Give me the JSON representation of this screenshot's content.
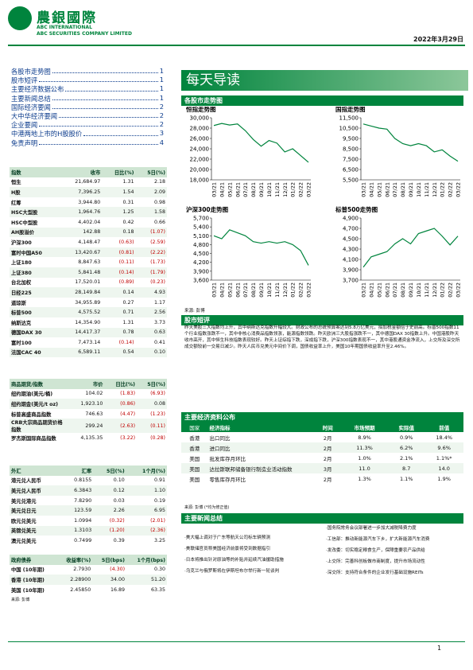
{
  "header": {
    "brand": "農銀國際",
    "en1": "ABC INTERNATIONAL",
    "en2": "ABC SECURITIES COMPANY LIMITED",
    "date": "2022年3月29日"
  },
  "toc": [
    {
      "title": "各股市走势图",
      "page": "1"
    },
    {
      "title": "股市短评",
      "page": "1"
    },
    {
      "title": "主要经济数据公布",
      "page": "1"
    },
    {
      "title": "主要新闻总结",
      "page": "1"
    },
    {
      "title": "国际经济要闻",
      "page": "2"
    },
    {
      "title": "大中华经济要闻",
      "page": "2"
    },
    {
      "title": "企业要闻",
      "page": "2"
    },
    {
      "title": "中港两地上市的H股股价",
      "page": "3"
    },
    {
      "title": "免责声明",
      "page": "4"
    }
  ],
  "banner": "每天导读",
  "market_section": {
    "title": "各股市走势图",
    "source": "来源: 彭博",
    "charts": [
      {
        "title": "恒指走势图",
        "xlabels": [
          "03/21",
          "04/21",
          "05/21",
          "06/21",
          "07/21",
          "08/21",
          "09/21",
          "10/21",
          "11/21",
          "12/21",
          "01/22",
          "02/22",
          "03/22"
        ],
        "values": [
          28500,
          28900,
          28600,
          28800,
          27500,
          25800,
          24500,
          25600,
          25100,
          23400,
          24000,
          22700,
          21400
        ],
        "ylim": [
          18000,
          30000
        ],
        "yticks": [
          {
            "value": 18000,
            "label": "18,000"
          },
          {
            "value": 20000,
            "label": "20,000"
          },
          {
            "value": 22000,
            "label": "22,000"
          },
          {
            "value": 24000,
            "label": "24,000"
          },
          {
            "value": 26000,
            "label": "26,000"
          },
          {
            "value": 28000,
            "label": "28,000"
          },
          {
            "value": 30000,
            "label": "30,000"
          }
        ],
        "color": "#00843d"
      },
      {
        "title": "国指走势图",
        "xlabels": [
          "03/21",
          "04/21",
          "05/21",
          "06/21",
          "07/21",
          "08/21",
          "09/21",
          "10/21",
          "11/21",
          "12/21",
          "01/22",
          "02/22",
          "03/22"
        ],
        "values": [
          10900,
          10700,
          10500,
          10400,
          9500,
          9000,
          8800,
          9000,
          8800,
          8200,
          8400,
          7800,
          7300
        ],
        "ylim": [
          5500,
          11500
        ],
        "yticks": [
          {
            "value": 5500,
            "label": "5,500"
          },
          {
            "value": 6500,
            "label": "6,500"
          },
          {
            "value": 7500,
            "label": "7,500"
          },
          {
            "value": 8500,
            "label": "8,500"
          },
          {
            "value": 9500,
            "label": "9,500"
          },
          {
            "value": 10500,
            "label": "10,500"
          },
          {
            "value": 11500,
            "label": "11,500"
          }
        ],
        "color": "#00843d"
      },
      {
        "title": "沪深300走势图",
        "xlabels": [
          "03/21",
          "04/21",
          "05/21",
          "06/21",
          "07/21",
          "08/21",
          "09/21",
          "10/21",
          "11/21",
          "12/21",
          "01/22",
          "02/22",
          "03/22"
        ],
        "values": [
          5100,
          5000,
          5300,
          5200,
          5100,
          4900,
          4850,
          4900,
          4850,
          4900,
          4800,
          4600,
          4100
        ],
        "ylim": [
          3600,
          5700
        ],
        "yticks": [
          {
            "value": 3600,
            "label": "3,600"
          },
          {
            "value": 3900,
            "label": "3,900"
          },
          {
            "value": 4200,
            "label": "4,200"
          },
          {
            "value": 4500,
            "label": "4,500"
          },
          {
            "value": 4800,
            "label": "4,800"
          },
          {
            "value": 5100,
            "label": "5,100"
          },
          {
            "value": 5400,
            "label": "5,400"
          },
          {
            "value": 5700,
            "label": "5,700"
          }
        ],
        "color": "#00843d"
      },
      {
        "title": "标普500走势图",
        "xlabels": [
          "03/21",
          "04/21",
          "05/21",
          "06/21",
          "07/21",
          "08/21",
          "09/21",
          "10/21",
          "11/21",
          "12/21",
          "01/22",
          "02/22",
          "03/22"
        ],
        "values": [
          3950,
          4150,
          4200,
          4250,
          4400,
          4500,
          4400,
          4600,
          4650,
          4700,
          4550,
          4380,
          4550
        ],
        "ylim": [
          3700,
          4900
        ],
        "yticks": [
          {
            "value": 3700,
            "label": "3,700"
          },
          {
            "value": 3900,
            "label": "3,900"
          },
          {
            "value": 4100,
            "label": "4,100"
          },
          {
            "value": 4300,
            "label": "4,300"
          },
          {
            "value": 4500,
            "label": "4,500"
          },
          {
            "value": 4700,
            "label": "4,700"
          },
          {
            "value": 4900,
            "label": "4,900"
          }
        ],
        "color": "#00843d"
      }
    ]
  },
  "commentary": {
    "title": "股市短评",
    "text": "昨天美股三大指数均上升，其中纳斯达克指数升幅较大。财政公布的总统预算案达到5.8万亿美元，拟加税金额倍于史前高。标普500指数11个行业指数涨跌不一，其中非核心消费品指数领涨，能源指数领跌。昨天欧洲三大股指涨跌不一，其中德国DAX 30指数上升。中国港股昨天收市高开，其中恒生科技指数表现较好。昨天上证综指下跌，深成指下跌，沪深300指数表现不一，其中港股通资金净流入，上交所及深交所成交额较前一交易日减少。昨天人民币兑美元中间价下调，国债收益率上升，美国10年期国债收益率升至2.46%。"
  },
  "index_table": {
    "header": [
      "指数",
      "收市",
      "日比(%)",
      "5日(%)"
    ],
    "rows": [
      [
        "恒生",
        "21,684.97",
        "1.31",
        "2.18"
      ],
      [
        "H股",
        "7,396.25",
        "1.54",
        "2.09"
      ],
      [
        "红筹",
        "3,944.80",
        "0.31",
        "0.98"
      ],
      [
        "HSC大型股",
        "1,964.76",
        "1.25",
        "1.58"
      ],
      [
        "HSC中型股",
        "4,402.04",
        "0.42",
        "0.66"
      ],
      [
        "AH股溢价",
        "142.88",
        "0.18",
        "(1.07)"
      ],
      [
        "沪深300",
        "4,148.47",
        "(0.63)",
        "(2.59)"
      ],
      [
        "富时中国A50",
        "13,420.67",
        "(0.81)",
        "(2.22)"
      ],
      [
        "上证180",
        "8,847.63",
        "(0.11)",
        "(1.73)"
      ],
      [
        "上证380",
        "5,841.48",
        "(0.14)",
        "(1.79)"
      ],
      [
        "台北加权",
        "17,520.01",
        "(0.89)",
        "(0.23)"
      ],
      [
        "日经225",
        "28,149.84",
        "0.14",
        "4.93"
      ],
      [
        "道琼斯",
        "34,955.89",
        "0.27",
        "1.17"
      ],
      [
        "标普500",
        "4,575.52",
        "0.71",
        "2.56"
      ],
      [
        "纳斯达克",
        "14,354.90",
        "1.31",
        "3.73"
      ],
      [
        "德国DAX 30",
        "14,417.37",
        "0.78",
        "0.63"
      ],
      [
        "富时100",
        "7,473.14",
        "(0.14)",
        "0.41"
      ],
      [
        "法国CAC 40",
        "6,589.11",
        "0.54",
        "0.10"
      ]
    ]
  },
  "commodity_table": {
    "header": [
      "商品期货/指数",
      "市价",
      "日比(%)",
      "5日(%)"
    ],
    "rows": [
      [
        "纽约期油(美元/桶)",
        "104.02",
        "(1.83)",
        "(6.93)"
      ],
      [
        "纽约期金(美元/t oz)",
        "1,923.10",
        "(0.86)",
        "0.08"
      ],
      [
        "标普高盛商品指数",
        "746.63",
        "(4.47)",
        "(1.23)"
      ],
      [
        "CRB大宗商品期货价格指数",
        "299.24",
        "(2.63)",
        "(0.11)"
      ],
      [
        "罗杰斯国际商品指数",
        "4,135.35",
        "(3.22)",
        "(0.28)"
      ]
    ]
  },
  "fx_table": {
    "header": [
      "外汇",
      "汇率",
      "5日(%)",
      "1个月(%)"
    ],
    "rows": [
      [
        "港元兑人民币",
        "0.8155",
        "0.10",
        "0.91"
      ],
      [
        "美元兑人民币",
        "6.3843",
        "0.12",
        "1.10"
      ],
      [
        "美元兑港元",
        "7.8290",
        "0.03",
        "0.19"
      ],
      [
        "美元兑日元",
        "123.59",
        "2.26",
        "6.95"
      ],
      [
        "欧元兑美元",
        "1.0994",
        "(0.32)",
        "(2.01)"
      ],
      [
        "英镑兑美元",
        "1.3103",
        "(1.20)",
        "(2.36)"
      ],
      [
        "澳元兑美元",
        "0.7499",
        "0.39",
        "3.25"
      ]
    ]
  },
  "bond_table": {
    "header": [
      "政府债券",
      "收益率(%)",
      "5日(bps)",
      "1个月(bps)"
    ],
    "rows": [
      [
        "中国 (10年期)",
        "2.7930",
        "(4.30)",
        "0.30"
      ],
      [
        "香港 (10年期)",
        "2.28900",
        "34.00",
        "51.20"
      ],
      [
        "美国 (10年期)",
        "2.45850",
        "16.89",
        "63.35"
      ]
    ]
  },
  "left_source": "来源: 彭博",
  "econ": {
    "title": "主要经济资料公布",
    "header": [
      "国家",
      "经济指标",
      "时间",
      "市场预期",
      "实际值",
      "前值"
    ],
    "rows": [
      [
        "香港",
        "出口同比",
        "2月",
        "8.9%",
        "0.9%",
        "18.4%"
      ],
      [
        "香港",
        "进口同比",
        "2月",
        "11.3%",
        "6.2%",
        "9.6%"
      ],
      [
        "美国",
        "批发库存月环比",
        "2月",
        "1.0%",
        "2.1%",
        "1.1%*"
      ],
      [
        "美国",
        "达拉斯联邦储备银行制造业活动指数",
        "3月",
        "11.0",
        "8.7",
        "14.0"
      ],
      [
        "美国",
        "零售库存月环比",
        "2月",
        "1.3%",
        "1.1%",
        "1.9%"
      ]
    ],
    "source": "来源: 彭博 (*均为修正值)"
  },
  "news": {
    "title": "主要新闻总结",
    "left": [
      "·美大幅上调对于广东等航天公司标车辆预测",
      "·美联储官员称美国经济前景将受到数据指引",
      "·日本将推出针对原油等的补贴并延续汽油援助措施",
      "·乌克兰与俄罗斯将在伊斯坦布尔举行新一轮谈判"
    ],
    "right": [
      "·国务院常务会议部署进一步加大减税降费力度",
      "·工信部：推动新能源汽车下乡，扩大新能源汽车消费",
      "·发改委：切实稳定粮食生产，保障重要农产品供给",
      "·上交所：完善科创板做市商制度，提升市场流动性",
      "·深交所：支持符合条件的企业发行基础设施REITs"
    ]
  },
  "page_number": "1"
}
